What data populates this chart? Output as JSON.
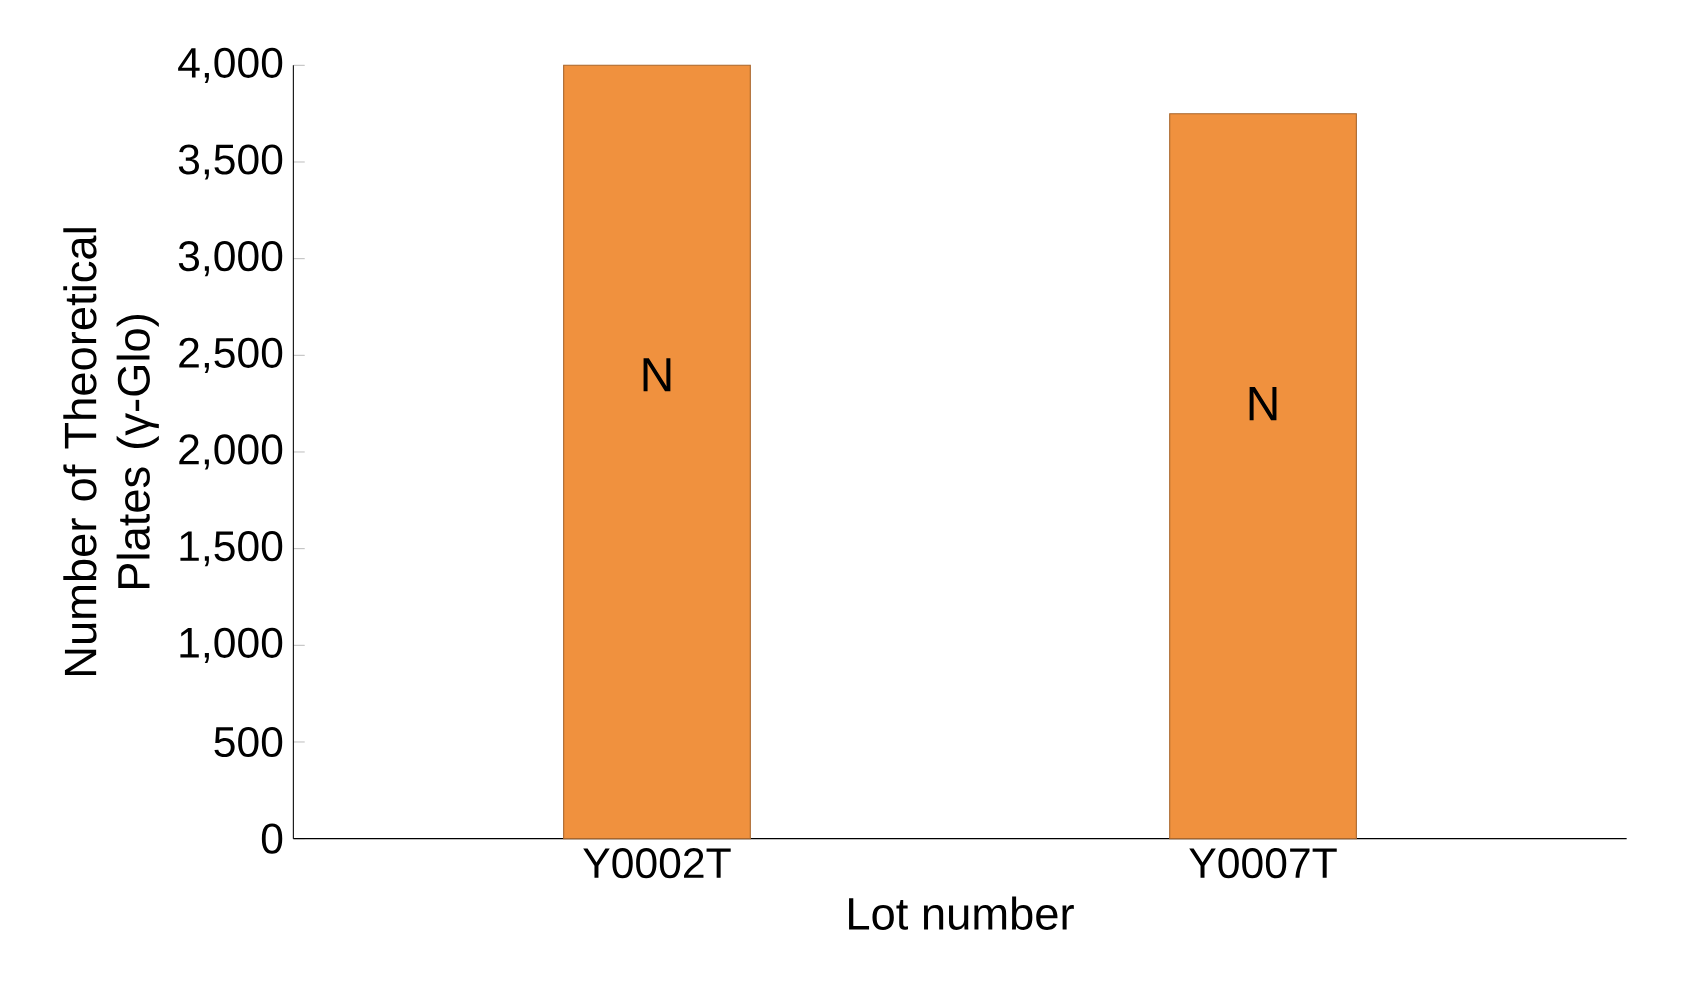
{
  "chart_data": {
    "type": "bar",
    "ylabel": "Number of Theoretical Plates (γ-Glo)",
    "xlabel": "Lot number",
    "categories": [
      "Y0002T",
      "Y0007T"
    ],
    "values": [
      4000,
      3750
    ],
    "color": "#f0913e",
    "ylim": [
      0,
      4000
    ],
    "yticks": [
      {
        "value": 0,
        "label": "0"
      },
      {
        "value": 500,
        "label": "500"
      },
      {
        "value": 1000,
        "label": "1,000"
      },
      {
        "value": 1500,
        "label": "1,500"
      },
      {
        "value": 2000,
        "label": "2,000"
      },
      {
        "value": 2500,
        "label": "2,500"
      },
      {
        "value": 3000,
        "label": "3,000"
      },
      {
        "value": 3500,
        "label": "3,500"
      },
      {
        "value": 4000,
        "label": "4,000"
      }
    ],
    "annotations": [
      "N",
      "N"
    ],
    "grid": false
  }
}
